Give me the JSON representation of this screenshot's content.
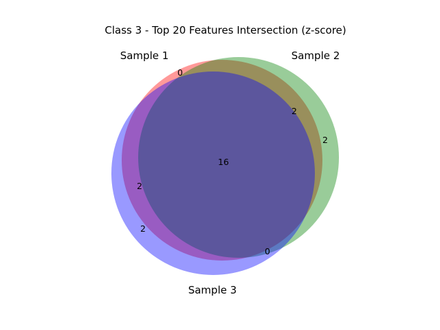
{
  "title": "Class 3 - Top 20 Features Intersection (z-score)",
  "sets": [
    {
      "id": "s1",
      "label": "Sample 1",
      "color": "#ff0000"
    },
    {
      "id": "s2",
      "label": "Sample 2",
      "color": "#008000"
    },
    {
      "id": "s3",
      "label": "Sample 3",
      "color": "#0000ff"
    }
  ],
  "regions": {
    "only_1": "0",
    "only_2": "2",
    "only_3": "2",
    "s1_s2": "2",
    "s1_s3": "2",
    "s2_s3": "0",
    "all_three": "16"
  }
}
